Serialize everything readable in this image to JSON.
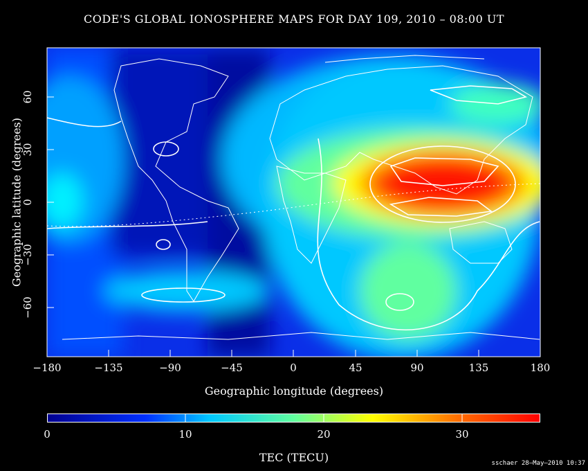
{
  "title": "CODE'S GLOBAL IONOSPHERE MAPS FOR DAY 109, 2010 – 08:00 UT",
  "x_axis": {
    "label": "Geographic longitude (degrees)",
    "ticks": [
      "−180",
      "−135",
      "−90",
      "−45",
      "0",
      "45",
      "90",
      "135",
      "180"
    ],
    "range": [
      -180,
      180
    ]
  },
  "y_axis": {
    "label": "Geographic latitude (degrees)",
    "ticks": [
      "60",
      "30",
      "0",
      "−30",
      "−60"
    ],
    "range": [
      -87.5,
      87.5
    ]
  },
  "colorbar": {
    "label": "TEC (TECU)",
    "ticks": [
      "0",
      "10",
      "20",
      "30"
    ],
    "range": [
      0,
      36
    ]
  },
  "credit": "sschaer 28–May–2010 10:37",
  "colors": {
    "background": "#000000",
    "overlay": "#ffffff"
  }
}
